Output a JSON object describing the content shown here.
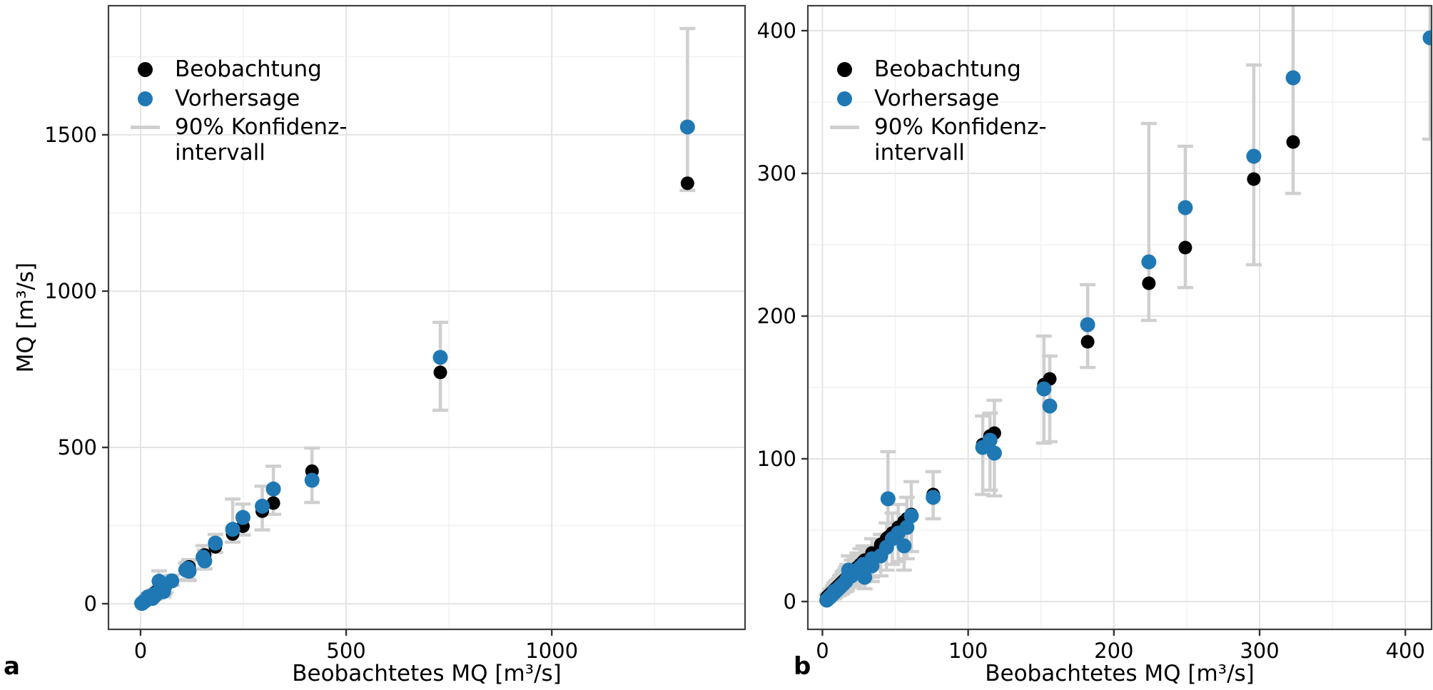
{
  "legend": {
    "items": [
      {
        "label": "Beobachtung",
        "marker": "dot",
        "color": "#000000"
      },
      {
        "label": "Vorhersage",
        "marker": "dot",
        "color": "#1f78b4"
      },
      {
        "label_line1": "90% Konfidenz-",
        "label_line2": "intervall",
        "marker": "line",
        "color": "#cfcfcf"
      }
    ]
  },
  "chart_data": {
    "type": "scatter",
    "title": "",
    "series": [
      {
        "name": "Beobachtung",
        "color": "#000000",
        "marker": "dot"
      },
      {
        "name": "Vorhersage",
        "color": "#1f78b4",
        "marker": "dot"
      },
      {
        "name": "90% Konfidenzintervall",
        "color": "#cfcfcf",
        "marker": "errorbar"
      }
    ],
    "panels": [
      {
        "label": "a",
        "xlabel": "Beobachtetes MQ [m³/s]",
        "ylabel": "MQ [m³/s]",
        "xlim": [
          -78,
          1470
        ],
        "ylim": [
          -82,
          1913
        ],
        "xticks": [
          0,
          500,
          1000
        ],
        "yticks": [
          0,
          500,
          1000,
          1500
        ],
        "xminor": [
          250,
          750,
          1250
        ],
        "yminor": [
          250,
          750,
          1250,
          1750
        ],
        "grid": true,
        "legend_position": "top-left"
      },
      {
        "label": "b",
        "xlabel": "Beobachtetes MQ [m³/s]",
        "ylabel": "",
        "xlim": [
          -10,
          418
        ],
        "ylim": [
          -19.5,
          417.5
        ],
        "xticks": [
          0,
          100,
          200,
          300,
          400
        ],
        "yticks": [
          0,
          100,
          200,
          300,
          400
        ],
        "xminor": [
          50,
          150,
          250,
          350
        ],
        "yminor": [
          50,
          150,
          250,
          350
        ],
        "grid": true,
        "legend_position": "top-left"
      }
    ],
    "points_columns": [
      "beobachtetes_mq",
      "beobachtung",
      "vorhersage",
      "ci90_low",
      "ci90_high"
    ],
    "points": [
      [
        3,
        3,
        1,
        0,
        5
      ],
      [
        4,
        4,
        2,
        0,
        6
      ],
      [
        5,
        5,
        3,
        1,
        8
      ],
      [
        6,
        6,
        4,
        1,
        9
      ],
      [
        7,
        7,
        5,
        2,
        11
      ],
      [
        8,
        8,
        6,
        2,
        12
      ],
      [
        8,
        8,
        7,
        3,
        13
      ],
      [
        9,
        9,
        7,
        3,
        14
      ],
      [
        10,
        10,
        8,
        4,
        15
      ],
      [
        11,
        11,
        9,
        4,
        16
      ],
      [
        12,
        12,
        10,
        5,
        18
      ],
      [
        13,
        13,
        11,
        5,
        19
      ],
      [
        14,
        14,
        12,
        6,
        21
      ],
      [
        15,
        15,
        13,
        7,
        22
      ],
      [
        16,
        16,
        14,
        7,
        24
      ],
      [
        17,
        17,
        16,
        8,
        26
      ],
      [
        18,
        18,
        22,
        11,
        32
      ],
      [
        20,
        20,
        18,
        10,
        29
      ],
      [
        22,
        22,
        20,
        11,
        31
      ],
      [
        24,
        24,
        22,
        12,
        34
      ],
      [
        26,
        26,
        24,
        13,
        37
      ],
      [
        28,
        28,
        26,
        14,
        39
      ],
      [
        29,
        29,
        17,
        9,
        28
      ],
      [
        34,
        34,
        25,
        14,
        38
      ],
      [
        34,
        34,
        30,
        17,
        44
      ],
      [
        40,
        40,
        32,
        18,
        47
      ],
      [
        44,
        44,
        38,
        22,
        55
      ],
      [
        45,
        45,
        72,
        47,
        105
      ],
      [
        48,
        48,
        44,
        26,
        62
      ],
      [
        52,
        52,
        48,
        28,
        68
      ],
      [
        56,
        56,
        39,
        22,
        56
      ],
      [
        58,
        58,
        52,
        30,
        73
      ],
      [
        61,
        61,
        60,
        35,
        84
      ],
      [
        76,
        75,
        73,
        58,
        91
      ],
      [
        110,
        110,
        108,
        75,
        130
      ],
      [
        115,
        116,
        113,
        78,
        132
      ],
      [
        118,
        118,
        104,
        74,
        141
      ],
      [
        152,
        152,
        149,
        111,
        186
      ],
      [
        156,
        156,
        137,
        112,
        172
      ],
      [
        182,
        182,
        194,
        164,
        222
      ],
      [
        224,
        223,
        238,
        197,
        335
      ],
      [
        249,
        248,
        276,
        220,
        319
      ],
      [
        296,
        296,
        312,
        236,
        376
      ],
      [
        323,
        322,
        367,
        286,
        440
      ],
      [
        417,
        424,
        395,
        324,
        498
      ],
      [
        729,
        740,
        788,
        619,
        900
      ],
      [
        1330,
        1345,
        1525,
        1322,
        1840
      ]
    ]
  }
}
